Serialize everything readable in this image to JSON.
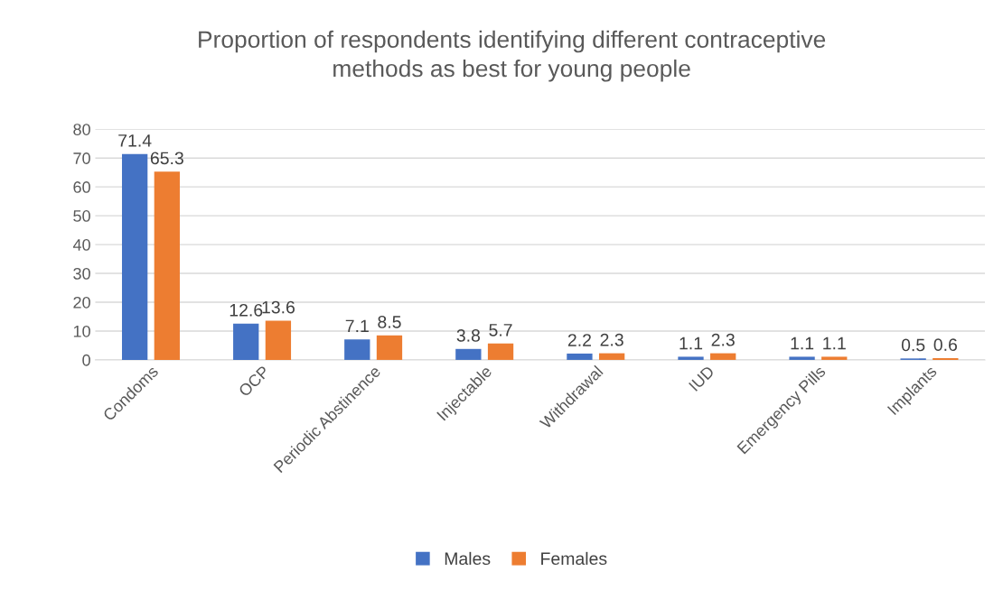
{
  "chart_data": {
    "type": "bar",
    "title": "Proportion of respondents identifying different contraceptive\nmethods as best for young people",
    "categories": [
      "Condoms",
      "OCP",
      "Periodic Abstinence",
      "Injectable",
      "Withdrawal",
      "IUD",
      "Emergency Pills",
      "Implants"
    ],
    "series": [
      {
        "name": "Males",
        "color": "#4472c4",
        "values": [
          71.4,
          12.6,
          7.1,
          3.8,
          2.2,
          1.1,
          1.1,
          0.5
        ]
      },
      {
        "name": "Females",
        "color": "#ed7d31",
        "values": [
          65.3,
          13.6,
          8.5,
          5.7,
          2.3,
          2.3,
          1.1,
          0.6
        ]
      }
    ],
    "ylim": [
      0,
      80
    ],
    "yticks": [
      0,
      10,
      20,
      30,
      40,
      50,
      60,
      70,
      80
    ],
    "grid": "y",
    "legend": "bottom",
    "data_labels": true
  }
}
